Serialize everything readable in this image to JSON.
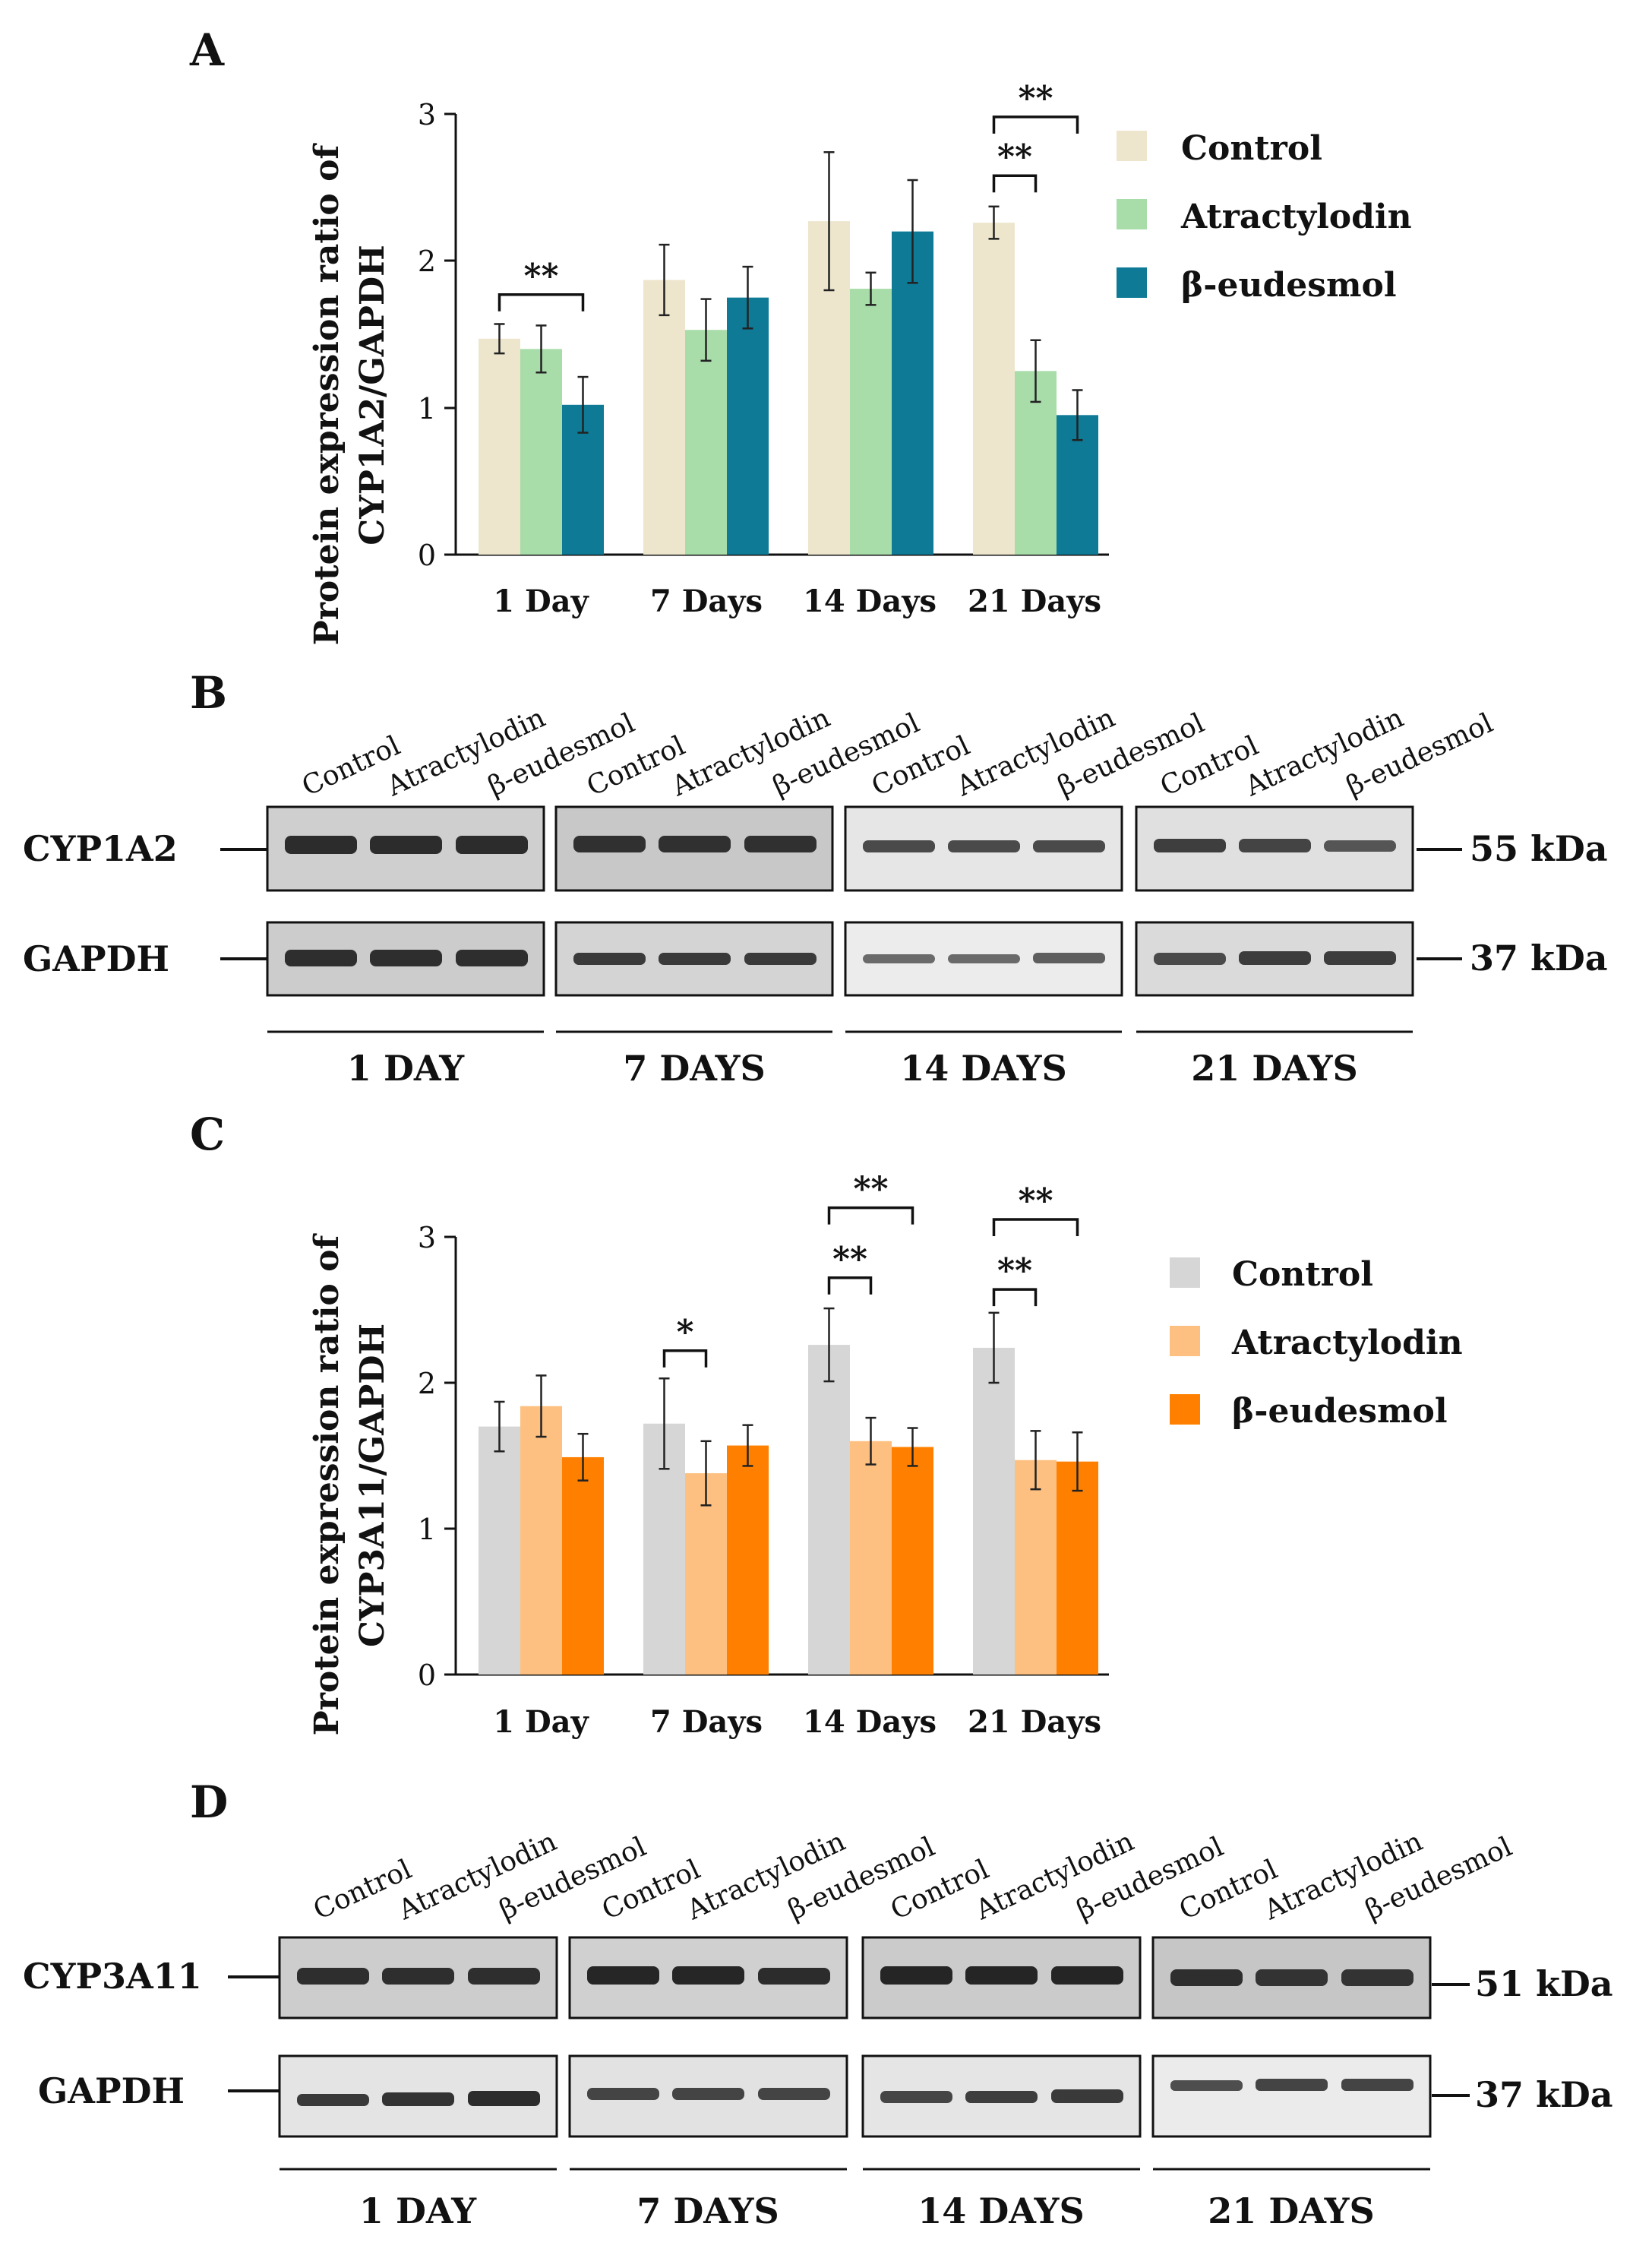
{
  "chart_data": [
    {
      "panel": "A",
      "type": "bar",
      "ylabel_line1": "Protein expression ratio of",
      "ylabel_line2": "CYP1A2/GAPDH",
      "ylim": [
        0,
        3
      ],
      "yticks": [
        "0",
        "1",
        "2",
        "3"
      ],
      "categories": [
        "1 Day",
        "7 Days",
        "14 Days",
        "21 Days"
      ],
      "series": [
        {
          "name": "Control",
          "color": "#EDE6CD",
          "values": [
            1.47,
            1.87,
            2.27,
            2.26
          ],
          "errors": [
            0.1,
            0.24,
            0.47,
            0.11
          ]
        },
        {
          "name": "Atractylodin",
          "color": "#A8DCA9",
          "values": [
            1.4,
            1.53,
            1.81,
            1.25
          ],
          "errors": [
            0.16,
            0.21,
            0.11,
            0.21
          ]
        },
        {
          "name": "β-eudesmol",
          "color": "#0E7A96",
          "values": [
            1.02,
            1.75,
            2.2,
            0.95
          ],
          "errors": [
            0.19,
            0.21,
            0.35,
            0.17
          ]
        }
      ],
      "significance": [
        {
          "label": "**",
          "category": 0,
          "from": 0,
          "to": 2,
          "y": 1.77
        },
        {
          "label": "**",
          "category": 3,
          "from": 0,
          "to": 1,
          "y": 2.58
        },
        {
          "label": "**",
          "category": 3,
          "from": 0,
          "to": 2,
          "y": 2.98
        }
      ]
    },
    {
      "panel": "C",
      "type": "bar",
      "ylabel_line1": "Protein expression ratio of",
      "ylabel_line2": "CYP3A11/GAPDH",
      "ylim": [
        0,
        3
      ],
      "yticks": [
        "0",
        "1",
        "2",
        "3"
      ],
      "categories": [
        "1 Day",
        "7 Days",
        "14 Days",
        "21 Days"
      ],
      "series": [
        {
          "name": "Control",
          "color": "#D6D6D6",
          "values": [
            1.7,
            1.72,
            2.26,
            2.24
          ],
          "errors": [
            0.17,
            0.31,
            0.25,
            0.24
          ]
        },
        {
          "name": "Atractylodin",
          "color": "#FDC080",
          "values": [
            1.84,
            1.38,
            1.6,
            1.47
          ],
          "errors": [
            0.21,
            0.22,
            0.16,
            0.2
          ]
        },
        {
          "name": "β-eudesmol",
          "color": "#FF8000",
          "values": [
            1.49,
            1.57,
            1.56,
            1.46
          ],
          "errors": [
            0.16,
            0.14,
            0.13,
            0.2
          ]
        }
      ],
      "significance": [
        {
          "label": "*",
          "category": 1,
          "from": 0,
          "to": 1,
          "y": 2.22
        },
        {
          "label": "**",
          "category": 2,
          "from": 0,
          "to": 1,
          "y": 2.72
        },
        {
          "label": "**",
          "category": 2,
          "from": 0,
          "to": 2,
          "y": 3.2
        },
        {
          "label": "**",
          "category": 3,
          "from": 0,
          "to": 1,
          "y": 2.64
        },
        {
          "label": "**",
          "category": 3,
          "from": 0,
          "to": 2,
          "y": 3.12
        }
      ]
    }
  ],
  "panels": {
    "a": {
      "letter": "A"
    },
    "b": {
      "letter": "B",
      "lane_labels": [
        "Control",
        "Atractylodin",
        "β-eudesmol"
      ],
      "rows": [
        {
          "label": "CYP1A2",
          "size": "55 kDa"
        },
        {
          "label": "GAPDH",
          "size": "37 kDa"
        }
      ],
      "groups": [
        "1 DAY",
        "7 DAYS",
        "14 DAYS",
        "21 DAYS"
      ]
    },
    "c": {
      "letter": "C"
    },
    "d": {
      "letter": "D",
      "lane_labels": [
        "Control",
        "Atractylodin",
        "β-eudesmol"
      ],
      "rows": [
        {
          "label": "CYP3A11",
          "size": "51 kDa"
        },
        {
          "label": "GAPDH",
          "size": "37 kDa"
        }
      ],
      "groups": [
        "1 DAY",
        "7 DAYS",
        "14 DAYS",
        "21 DAYS"
      ]
    }
  }
}
